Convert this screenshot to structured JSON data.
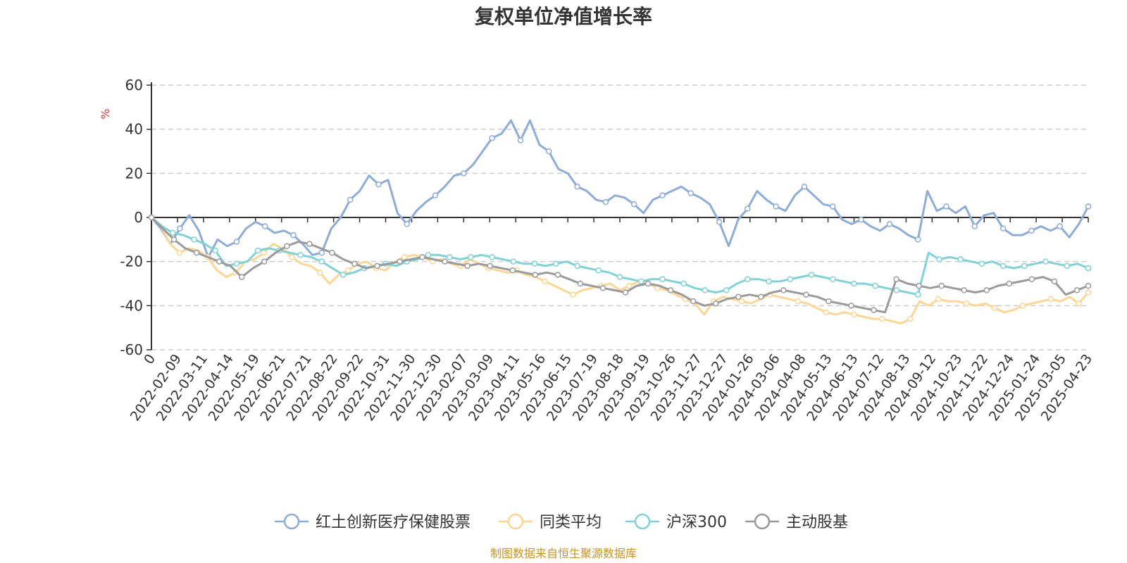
{
  "chart_data": {
    "type": "line",
    "title": "复权单位净值增长率",
    "ylabel": "%",
    "ylim": [
      -60,
      60
    ],
    "yticks": [
      60,
      40,
      20,
      0,
      -20,
      -40,
      -60
    ],
    "grid": true,
    "legend_position": "bottom",
    "x_tick_labels": [
      "0",
      "2022-02-09",
      "2022-03-11",
      "2022-04-14",
      "2022-05-19",
      "2022-06-21",
      "2022-07-21",
      "2022-08-22",
      "2022-09-22",
      "2022-10-31",
      "2022-11-30",
      "2022-12-30",
      "2023-02-07",
      "2023-03-09",
      "2023-04-11",
      "2023-05-16",
      "2023-06-15",
      "2023-07-19",
      "2023-08-18",
      "2023-09-19",
      "2023-10-26",
      "2023-11-27",
      "2023-12-27",
      "2024-01-26",
      "2024-03-06",
      "2024-04-08",
      "2024-05-13",
      "2024-06-13",
      "2024-07-12",
      "2024-08-13",
      "2024-09-12",
      "2024-10-23",
      "2024-11-22",
      "2024-12-24",
      "2025-01-24",
      "2025-03-05",
      "2025-04-23"
    ],
    "series": [
      {
        "name": "红土创新医疗保健股票",
        "color": "#8CACD9",
        "values": [
          0,
          -5,
          -12,
          -5,
          1,
          -6,
          -18,
          -10,
          -13,
          -11,
          -5,
          -2,
          -4,
          -7,
          -6,
          -8,
          -12,
          -17,
          -16,
          -5,
          0,
          8,
          12,
          19,
          15,
          17,
          2,
          -3,
          3,
          7,
          10,
          14,
          19,
          20,
          24,
          30,
          36,
          38,
          44,
          35,
          44,
          33,
          30,
          22,
          20,
          14,
          12,
          8,
          7,
          10,
          9,
          6,
          2,
          8,
          10,
          12,
          14,
          11,
          9,
          6,
          -2,
          -13,
          -1,
          4,
          12,
          8,
          5,
          3,
          10,
          14,
          10,
          6,
          5,
          -1,
          -3,
          -1,
          -4,
          -6,
          -3,
          -5,
          -8,
          -10,
          12,
          3,
          5,
          2,
          5,
          -4,
          1,
          2,
          -5,
          -8,
          -8,
          -6,
          -4,
          -6,
          -4,
          -9,
          -3,
          5
        ]
      },
      {
        "name": "同类平均",
        "color": "#FDD692",
        "values": [
          0,
          -4,
          -12,
          -16,
          -14,
          -15,
          -18,
          -24,
          -27,
          -25,
          -20,
          -19,
          -16,
          -12,
          -14,
          -18,
          -21,
          -22,
          -25,
          -30,
          -26,
          -24,
          -21,
          -20,
          -23,
          -24,
          -20,
          -18,
          -17,
          -18,
          -20,
          -19,
          -21,
          -22,
          -19,
          -21,
          -23,
          -24,
          -25,
          -24,
          -26,
          -27,
          -29,
          -31,
          -33,
          -35,
          -33,
          -32,
          -31,
          -30,
          -33,
          -31,
          -29,
          -30,
          -32,
          -33,
          -35,
          -37,
          -39,
          -44,
          -38,
          -36,
          -37,
          -38,
          -39,
          -37,
          -35,
          -36,
          -37,
          -38,
          -39,
          -41,
          -43,
          -44,
          -43,
          -44,
          -45,
          -46,
          -46,
          -47,
          -48,
          -46,
          -38,
          -40,
          -37,
          -38,
          -38,
          -39,
          -40,
          -39,
          -41,
          -43,
          -42,
          -40,
          -39,
          -38,
          -37,
          -38,
          -36,
          -39,
          -34
        ]
      },
      {
        "name": "沪深300",
        "color": "#7ED3D6",
        "values": [
          0,
          -4,
          -7,
          -8,
          -10,
          -12,
          -15,
          -22,
          -21,
          -20,
          -15,
          -14,
          -15,
          -16,
          -17,
          -18,
          -20,
          -23,
          -26,
          -25,
          -23,
          -22,
          -21,
          -22,
          -20,
          -19,
          -17,
          -17,
          -18,
          -19,
          -18,
          -17,
          -18,
          -19,
          -20,
          -21,
          -21,
          -22,
          -21,
          -20,
          -22,
          -23,
          -24,
          -25,
          -27,
          -28,
          -29,
          -28,
          -28,
          -29,
          -30,
          -32,
          -33,
          -34,
          -33,
          -30,
          -28,
          -28,
          -29,
          -29,
          -28,
          -27,
          -26,
          -27,
          -28,
          -29,
          -30,
          -30,
          -31,
          -32,
          -33,
          -34,
          -35,
          -16,
          -19,
          -18,
          -19,
          -20,
          -21,
          -20,
          -22,
          -23,
          -22,
          -21,
          -20,
          -21,
          -22,
          -21,
          -23
        ]
      },
      {
        "name": "主动股基",
        "color": "#9A9A9A",
        "values": [
          0,
          -5,
          -10,
          -14,
          -16,
          -18,
          -20,
          -22,
          -27,
          -23,
          -20,
          -16,
          -13,
          -11,
          -12,
          -14,
          -16,
          -19,
          -21,
          -23,
          -22,
          -21,
          -20,
          -19,
          -18,
          -19,
          -20,
          -21,
          -22,
          -21,
          -22,
          -23,
          -24,
          -25,
          -26,
          -25,
          -26,
          -28,
          -30,
          -31,
          -32,
          -33,
          -34,
          -31,
          -30,
          -31,
          -33,
          -35,
          -38,
          -40,
          -39,
          -37,
          -36,
          -35,
          -36,
          -34,
          -33,
          -34,
          -35,
          -36,
          -38,
          -39,
          -40,
          -41,
          -42,
          -43,
          -28,
          -30,
          -31,
          -32,
          -31,
          -32,
          -33,
          -34,
          -33,
          -31,
          -30,
          -29,
          -28,
          -27,
          -29,
          -35,
          -33,
          -31
        ]
      }
    ]
  },
  "legend": {
    "items": [
      "红土创新医疗保健股票",
      "同类平均",
      "沪深300",
      "主动股基"
    ]
  },
  "source": "制图数据来自恒生聚源数据库",
  "colors": {
    "title": "#333333",
    "axis": "#333333",
    "grid": "#cccccc",
    "unit_label": "#e53935",
    "source": "#c9931f"
  }
}
